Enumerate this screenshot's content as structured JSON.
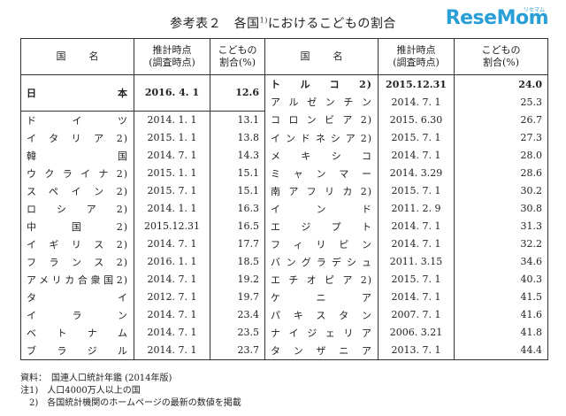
{
  "header": {
    "title": "参考表２　各国",
    "title_sup": "1)",
    "title_rest": "におけるこどもの割合",
    "logo_main": "ReseMom",
    "logo_sub": "リセマム"
  },
  "table": {
    "columns": [
      "国　　名",
      "推計時点\n(調査時点)",
      "こどもの\n割合(%)",
      "国　　名",
      "推計時点\n(調査時点)",
      "こどもの\n割合(%)"
    ],
    "col_name": "国名",
    "col_date_1": "推計時点",
    "col_date_2": "(調査時点)",
    "col_pct_1": "こどもの",
    "col_pct_2": "割合(%)",
    "left": [
      {
        "name": "日本",
        "date": "2016. 4. 1",
        "value": "12.6"
      },
      {
        "name": "ドイツ",
        "date": "2014. 1. 1",
        "value": "13.1"
      },
      {
        "name": "イタリア2)",
        "date": "2015. 1. 1",
        "value": "13.8"
      },
      {
        "name": "韓国",
        "date": "2014. 7. 1",
        "value": "14.3"
      },
      {
        "name": "ウクライナ2)",
        "date": "2015. 1. 1",
        "value": "15.1"
      },
      {
        "name": "スペイン2)",
        "date": "2015. 7. 1",
        "value": "15.1"
      },
      {
        "name": "ロシア2)",
        "date": "2014. 1. 1",
        "value": "16.3"
      },
      {
        "name": "中国2)",
        "date": "2015.12.31",
        "value": "16.5"
      },
      {
        "name": "イギリス2)",
        "date": "2014. 7. 1",
        "value": "17.7"
      },
      {
        "name": "フランス2)",
        "date": "2016. 1. 1",
        "value": "18.5"
      },
      {
        "name": "アメリカ合衆国2)",
        "date": "2014. 7. 1",
        "value": "19.2"
      },
      {
        "name": "タイ",
        "date": "2012. 7. 1",
        "value": "19.7"
      },
      {
        "name": "イラン",
        "date": "2014. 7. 1",
        "value": "23.4"
      },
      {
        "name": "ベトナム",
        "date": "2014. 7. 1",
        "value": "23.5"
      },
      {
        "name": "ブラジル",
        "date": "2014. 7. 1",
        "value": "23.7"
      }
    ],
    "right": [
      {
        "name": "トルコ2)",
        "date": "2015.12.31",
        "value": "24.0"
      },
      {
        "name": "アルゼンチン",
        "date": "2014. 7. 1",
        "value": "25.3"
      },
      {
        "name": "コロンビア2)",
        "date": "2015. 6.30",
        "value": "26.7"
      },
      {
        "name": "インドネシア2)",
        "date": "2015. 7. 1",
        "value": "27.3"
      },
      {
        "name": "メキシコ",
        "date": "2014. 7. 1",
        "value": "28.0"
      },
      {
        "name": "ミャンマー",
        "date": "2014. 3.29",
        "value": "28.6"
      },
      {
        "name": "南アフリカ2)",
        "date": "2015. 7. 1",
        "value": "30.2"
      },
      {
        "name": "インド",
        "date": "2011. 2. 9",
        "value": "30.8"
      },
      {
        "name": "エジプト",
        "date": "2014. 7. 1",
        "value": "31.3"
      },
      {
        "name": "フィリピン",
        "date": "2014. 7. 1",
        "value": "32.2"
      },
      {
        "name": "バングラデシュ",
        "date": "2011. 3.15",
        "value": "34.6"
      },
      {
        "name": "エチオピア2)",
        "date": "2015. 7. 1",
        "value": "40.3"
      },
      {
        "name": "ケニア",
        "date": "2014. 7. 1",
        "value": "41.5"
      },
      {
        "name": "パキスタン",
        "date": "2007. 7. 1",
        "value": "41.6"
      },
      {
        "name": "ナイジェリア",
        "date": "2006. 3.21",
        "value": "41.8"
      },
      {
        "name": "タンザニア",
        "date": "2013. 7. 1",
        "value": "44.4"
      }
    ]
  },
  "notes": {
    "source": "資料：　国連人口統計年鑑 (2014年版)",
    "note1": "注1)　人口4000万人以上の国",
    "note2": "　2)　各国統計機関のホームページの最新の数値を掲載"
  }
}
